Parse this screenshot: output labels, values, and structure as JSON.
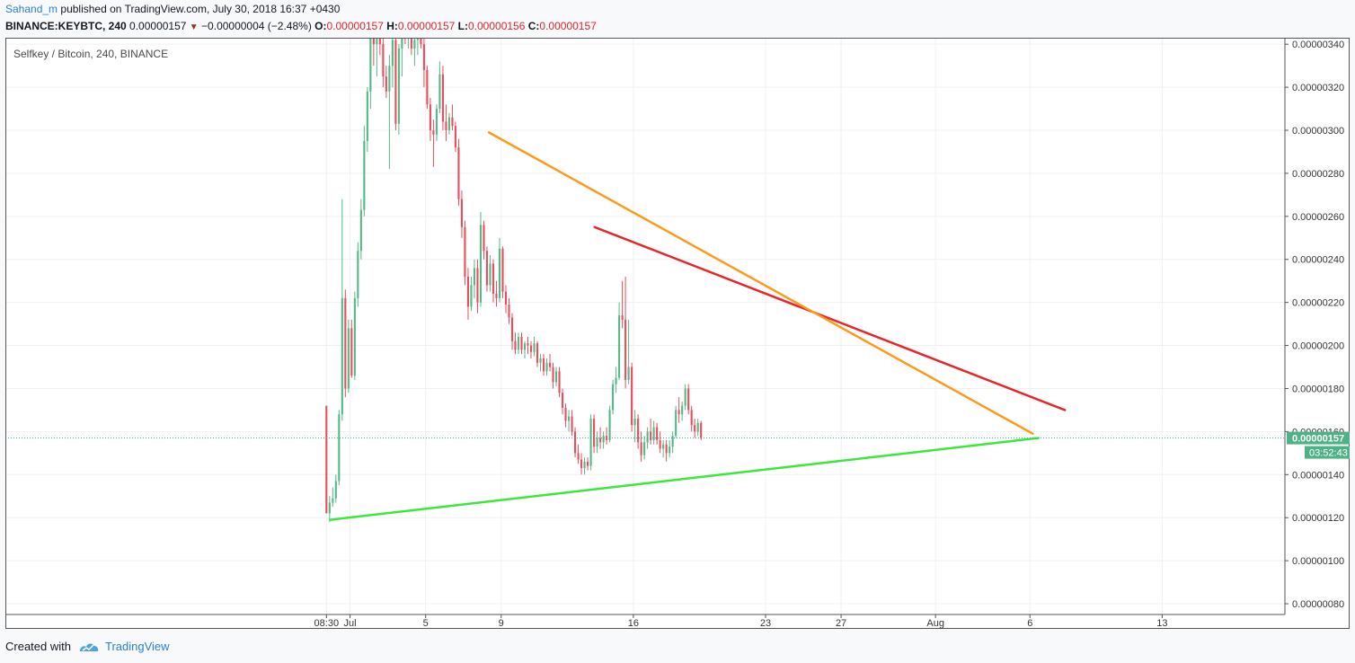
{
  "header": {
    "author": "Sahand_m",
    "published_text": "published on TradingView.com, July 30, 2018 16:37 +0430",
    "symbol": "BINANCE:KEYBTC, 240",
    "last_price": "0.00000157",
    "change": "−0.00000004 (−2.48%)",
    "o_label": "O:",
    "o_value": "0.00000157",
    "h_label": "H:",
    "h_value": "0.00000157",
    "l_label": "L:",
    "l_value": "0.00000156",
    "c_label": "C:",
    "c_value": "0.00000157"
  },
  "footer": {
    "created_with": "Created with",
    "brand": "TradingView"
  },
  "colors": {
    "up": "#53b987",
    "down": "#eb4d5c",
    "price_line": "#26a69a",
    "trend_red": "#e8252b",
    "trend_orange": "#ff9a1a",
    "trend_green": "#3ae83a"
  },
  "chart_data": {
    "type": "candlestick",
    "title": "Selfkey / Bitcoin, 240, BINANCE",
    "y_unit": "BTC",
    "ylim": [
      7.5e-07,
      3.43e-06
    ],
    "y_ticks": [
      "0.00000340",
      "0.00000320",
      "0.00000300",
      "0.00000280",
      "0.00000260",
      "0.00000240",
      "0.00000220",
      "0.00000200",
      "0.00000180",
      "0.00000160",
      "0.00000140",
      "0.00000120",
      "0.00000100",
      "0.00000080"
    ],
    "x_ticks": [
      {
        "label": "08:30",
        "day": 0
      },
      {
        "label": "Jul",
        "day": 1.25
      },
      {
        "label": "5",
        "day": 5.25
      },
      {
        "label": "9",
        "day": 9.25
      },
      {
        "label": "16",
        "day": 16.25
      },
      {
        "label": "23",
        "day": 23.25
      },
      {
        "label": "27",
        "day": 27.25
      },
      {
        "label": "Aug",
        "day": 32.25
      },
      {
        "label": "6",
        "day": 37.25
      },
      {
        "label": "13",
        "day": 44.25
      }
    ],
    "x_range_days": [
      -17,
      50.75
    ],
    "current_price": "0.00000157",
    "countdown": "03:52:43",
    "trendlines": [
      {
        "color": "red",
        "points": [
          [
            14.2,
            2.55e-06
          ],
          [
            39.1,
            1.7e-06
          ]
        ]
      },
      {
        "color": "orange",
        "points": [
          [
            8.6,
            2.99e-06
          ],
          [
            37.4,
            1.59e-06
          ]
        ]
      },
      {
        "color": "green",
        "points": [
          [
            0.2,
            1.19e-06
          ],
          [
            37.7,
            1.57e-06
          ]
        ]
      }
    ],
    "candles": [
      {
        "o": 1.72e-06,
        "h": 1.72e-06,
        "l": 1.22e-06,
        "c": 1.22e-06
      },
      {
        "o": 1.22e-06,
        "h": 1.3e-06,
        "l": 1.18e-06,
        "c": 1.27e-06
      },
      {
        "o": 1.27e-06,
        "h": 1.34e-06,
        "l": 1.25e-06,
        "c": 1.29e-06
      },
      {
        "o": 1.29e-06,
        "h": 1.4e-06,
        "l": 1.27e-06,
        "c": 1.37e-06
      },
      {
        "o": 1.37e-06,
        "h": 1.7e-06,
        "l": 1.35e-06,
        "c": 1.68e-06
      },
      {
        "o": 1.68e-06,
        "h": 2.68e-06,
        "l": 1.65e-06,
        "c": 2.22e-06
      },
      {
        "o": 2.22e-06,
        "h": 2.26e-06,
        "l": 1.76e-06,
        "c": 1.8e-06
      },
      {
        "o": 1.8e-06,
        "h": 2.12e-06,
        "l": 1.78e-06,
        "c": 2.08e-06
      },
      {
        "o": 2.08e-06,
        "h": 2.12e-06,
        "l": 1.85e-06,
        "c": 1.86e-06
      },
      {
        "o": 1.86e-06,
        "h": 2.25e-06,
        "l": 1.84e-06,
        "c": 2.22e-06
      },
      {
        "o": 2.22e-06,
        "h": 2.48e-06,
        "l": 2.18e-06,
        "c": 2.44e-06
      },
      {
        "o": 2.44e-06,
        "h": 2.68e-06,
        "l": 2.4e-06,
        "c": 2.63e-06
      },
      {
        "o": 2.63e-06,
        "h": 3.02e-06,
        "l": 2.6e-06,
        "c": 2.95e-06
      },
      {
        "o": 2.95e-06,
        "h": 3.2e-06,
        "l": 2.9e-06,
        "c": 3.18e-06
      },
      {
        "o": 3.18e-06,
        "h": 3.45e-06,
        "l": 3.1e-06,
        "c": 3.45e-06
      },
      {
        "o": 3.45e-06,
        "h": 3.45e-06,
        "l": 3.3e-06,
        "c": 3.4e-06
      },
      {
        "o": 3.4e-06,
        "h": 3.45e-06,
        "l": 3.25e-06,
        "c": 3.45e-06
      },
      {
        "o": 3.45e-06,
        "h": 3.45e-06,
        "l": 3.35e-06,
        "c": 3.4e-06
      },
      {
        "o": 3.4e-06,
        "h": 3.45e-06,
        "l": 3.2e-06,
        "c": 3.25e-06
      },
      {
        "o": 3.25e-06,
        "h": 3.3e-06,
        "l": 3.15e-06,
        "c": 3.18e-06
      },
      {
        "o": 3.18e-06,
        "h": 3.35e-06,
        "l": 2.82e-06,
        "c": 3.3e-06
      },
      {
        "o": 3.3e-06,
        "h": 3.45e-06,
        "l": 3.2e-06,
        "c": 3.42e-06
      },
      {
        "o": 3.42e-06,
        "h": 3.45e-06,
        "l": 3e-06,
        "c": 3.03e-06
      },
      {
        "o": 3.03e-06,
        "h": 3.4e-06,
        "l": 2.98e-06,
        "c": 3.38e-06
      },
      {
        "o": 3.38e-06,
        "h": 3.45e-06,
        "l": 3.25e-06,
        "c": 3.45e-06
      },
      {
        "o": 3.45e-06,
        "h": 3.45e-06,
        "l": 3.4e-06,
        "c": 3.43e-06
      },
      {
        "o": 3.43e-06,
        "h": 3.45e-06,
        "l": 3.38e-06,
        "c": 3.45e-06
      },
      {
        "o": 3.45e-06,
        "h": 3.45e-06,
        "l": 3.35e-06,
        "c": 3.38e-06
      },
      {
        "o": 3.38e-06,
        "h": 3.45e-06,
        "l": 3.3e-06,
        "c": 3.42e-06
      },
      {
        "o": 3.42e-06,
        "h": 3.45e-06,
        "l": 3.35e-06,
        "c": 3.45e-06
      },
      {
        "o": 3.45e-06,
        "h": 3.45e-06,
        "l": 3.38e-06,
        "c": 3.4e-06
      },
      {
        "o": 3.4e-06,
        "h": 3.45e-06,
        "l": 3.2e-06,
        "c": 3.28e-06
      },
      {
        "o": 3.28e-06,
        "h": 3.3e-06,
        "l": 3.1e-06,
        "c": 3.12e-06
      },
      {
        "o": 3.12e-06,
        "h": 3.15e-06,
        "l": 2.95e-06,
        "c": 3e-06
      },
      {
        "o": 3e-06,
        "h": 3.05e-06,
        "l": 2.83e-06,
        "c": 2.98e-06
      },
      {
        "o": 2.98e-06,
        "h": 3.12e-06,
        "l": 2.95e-06,
        "c": 3.1e-06
      },
      {
        "o": 3.1e-06,
        "h": 3.32e-06,
        "l": 3.08e-06,
        "c": 3.26e-06
      },
      {
        "o": 3.26e-06,
        "h": 3.3e-06,
        "l": 3e-06,
        "c": 3.04e-06
      },
      {
        "o": 3.04e-06,
        "h": 3.12e-06,
        "l": 2.95e-06,
        "c": 3e-06
      },
      {
        "o": 3e-06,
        "h": 3.08e-06,
        "l": 2.98e-06,
        "c": 3.06e-06
      },
      {
        "o": 3.06e-06,
        "h": 3.12e-06,
        "l": 3e-06,
        "c": 3.02e-06
      },
      {
        "o": 3.02e-06,
        "h": 3.04e-06,
        "l": 2.9e-06,
        "c": 2.92e-06
      },
      {
        "o": 2.92e-06,
        "h": 2.96e-06,
        "l": 2.65e-06,
        "c": 2.68e-06
      },
      {
        "o": 2.68e-06,
        "h": 2.72e-06,
        "l": 2.5e-06,
        "c": 2.55e-06
      },
      {
        "o": 2.55e-06,
        "h": 2.58e-06,
        "l": 2.28e-06,
        "c": 2.32e-06
      },
      {
        "o": 2.32e-06,
        "h": 2.36e-06,
        "l": 2.12e-06,
        "c": 2.18e-06
      },
      {
        "o": 2.18e-06,
        "h": 2.32e-06,
        "l": 2.16e-06,
        "c": 2.28e-06
      },
      {
        "o": 2.28e-06,
        "h": 2.4e-06,
        "l": 2.22e-06,
        "c": 2.36e-06
      },
      {
        "o": 2.36e-06,
        "h": 2.4e-06,
        "l": 2.15e-06,
        "c": 2.2e-06
      },
      {
        "o": 2.2e-06,
        "h": 2.62e-06,
        "l": 2.18e-06,
        "c": 2.56e-06
      },
      {
        "o": 2.56e-06,
        "h": 2.58e-06,
        "l": 2.4e-06,
        "c": 2.44e-06
      },
      {
        "o": 2.44e-06,
        "h": 2.46e-06,
        "l": 2.25e-06,
        "c": 2.28e-06
      },
      {
        "o": 2.28e-06,
        "h": 2.42e-06,
        "l": 2.25e-06,
        "c": 2.38e-06
      },
      {
        "o": 2.38e-06,
        "h": 2.4e-06,
        "l": 2.2e-06,
        "c": 2.24e-06
      },
      {
        "o": 2.24e-06,
        "h": 2.3e-06,
        "l": 2.18e-06,
        "c": 2.22e-06
      },
      {
        "o": 2.22e-06,
        "h": 2.5e-06,
        "l": 2.2e-06,
        "c": 2.45e-06
      },
      {
        "o": 2.45e-06,
        "h": 2.46e-06,
        "l": 2.22e-06,
        "c": 2.25e-06
      },
      {
        "o": 2.25e-06,
        "h": 2.28e-06,
        "l": 2.15e-06,
        "c": 2.19e-06
      },
      {
        "o": 2.19e-06,
        "h": 2.22e-06,
        "l": 2.1e-06,
        "c": 2.13e-06
      },
      {
        "o": 2.13e-06,
        "h": 2.15e-06,
        "l": 1.98e-06,
        "c": 2.02e-06
      },
      {
        "o": 2.02e-06,
        "h": 2.06e-06,
        "l": 1.96e-06,
        "c": 1.98e-06
      },
      {
        "o": 1.98e-06,
        "h": 2.06e-06,
        "l": 1.96e-06,
        "c": 2.04e-06
      },
      {
        "o": 2.04e-06,
        "h": 2.06e-06,
        "l": 1.96e-06,
        "c": 1.98e-06
      },
      {
        "o": 1.98e-06,
        "h": 2.02e-06,
        "l": 1.94e-06,
        "c": 2.01e-06
      },
      {
        "o": 2.01e-06,
        "h": 2.04e-06,
        "l": 1.96e-06,
        "c": 2e-06
      },
      {
        "o": 2e-06,
        "h": 2.02e-06,
        "l": 1.94e-06,
        "c": 1.97e-06
      },
      {
        "o": 1.97e-06,
        "h": 2.04e-06,
        "l": 1.95e-06,
        "c": 2.01e-06
      },
      {
        "o": 2.01e-06,
        "h": 2.02e-06,
        "l": 1.9e-06,
        "c": 1.92e-06
      },
      {
        "o": 1.92e-06,
        "h": 1.96e-06,
        "l": 1.88e-06,
        "c": 1.94e-06
      },
      {
        "o": 1.94e-06,
        "h": 1.96e-06,
        "l": 1.86e-06,
        "c": 1.88e-06
      },
      {
        "o": 1.88e-06,
        "h": 1.94e-06,
        "l": 1.86e-06,
        "c": 1.92e-06
      },
      {
        "o": 1.92e-06,
        "h": 1.96e-06,
        "l": 1.88e-06,
        "c": 1.9e-06
      },
      {
        "o": 1.9e-06,
        "h": 1.92e-06,
        "l": 1.8e-06,
        "c": 1.83e-06
      },
      {
        "o": 1.83e-06,
        "h": 1.9e-06,
        "l": 1.81e-06,
        "c": 1.88e-06
      },
      {
        "o": 1.88e-06,
        "h": 1.9e-06,
        "l": 1.76e-06,
        "c": 1.78e-06
      },
      {
        "o": 1.78e-06,
        "h": 1.8e-06,
        "l": 1.68e-06,
        "c": 1.71e-06
      },
      {
        "o": 1.71e-06,
        "h": 1.73e-06,
        "l": 1.62e-06,
        "c": 1.65e-06
      },
      {
        "o": 1.65e-06,
        "h": 1.7e-06,
        "l": 1.6e-06,
        "c": 1.67e-06
      },
      {
        "o": 1.67e-06,
        "h": 1.7e-06,
        "l": 1.58e-06,
        "c": 1.6e-06
      },
      {
        "o": 1.6e-06,
        "h": 1.62e-06,
        "l": 1.48e-06,
        "c": 1.5e-06
      },
      {
        "o": 1.5e-06,
        "h": 1.54e-06,
        "l": 1.45e-06,
        "c": 1.47e-06
      },
      {
        "o": 1.47e-06,
        "h": 1.5e-06,
        "l": 1.4e-06,
        "c": 1.43e-06
      },
      {
        "o": 1.43e-06,
        "h": 1.48e-06,
        "l": 1.4e-06,
        "c": 1.46e-06
      },
      {
        "o": 1.46e-06,
        "h": 1.48e-06,
        "l": 1.42e-06,
        "c": 1.44e-06
      },
      {
        "o": 1.44e-06,
        "h": 1.68e-06,
        "l": 1.42e-06,
        "c": 1.66e-06
      },
      {
        "o": 1.66e-06,
        "h": 1.68e-06,
        "l": 1.5e-06,
        "c": 1.53e-06
      },
      {
        "o": 1.53e-06,
        "h": 1.6e-06,
        "l": 1.5e-06,
        "c": 1.57e-06
      },
      {
        "o": 1.57e-06,
        "h": 1.62e-06,
        "l": 1.52e-06,
        "c": 1.55e-06
      },
      {
        "o": 1.55e-06,
        "h": 1.6e-06,
        "l": 1.52e-06,
        "c": 1.58e-06
      },
      {
        "o": 1.58e-06,
        "h": 1.62e-06,
        "l": 1.54e-06,
        "c": 1.56e-06
      },
      {
        "o": 1.56e-06,
        "h": 1.72e-06,
        "l": 1.55e-06,
        "c": 1.7e-06
      },
      {
        "o": 1.7e-06,
        "h": 1.84e-06,
        "l": 1.68e-06,
        "c": 1.82e-06
      },
      {
        "o": 1.82e-06,
        "h": 1.9e-06,
        "l": 1.78e-06,
        "c": 1.85e-06
      },
      {
        "o": 1.85e-06,
        "h": 2.2e-06,
        "l": 1.84e-06,
        "c": 2.14e-06
      },
      {
        "o": 2.14e-06,
        "h": 2.3e-06,
        "l": 2.08e-06,
        "c": 2.12e-06
      },
      {
        "o": 2.12e-06,
        "h": 2.32e-06,
        "l": 1.8e-06,
        "c": 1.84e-06
      },
      {
        "o": 1.84e-06,
        "h": 2.12e-06,
        "l": 1.82e-06,
        "c": 1.9e-06
      },
      {
        "o": 1.9e-06,
        "h": 1.92e-06,
        "l": 1.6e-06,
        "c": 1.63e-06
      },
      {
        "o": 1.63e-06,
        "h": 1.7e-06,
        "l": 1.55e-06,
        "c": 1.66e-06
      },
      {
        "o": 1.66e-06,
        "h": 1.68e-06,
        "l": 1.52e-06,
        "c": 1.55e-06
      },
      {
        "o": 1.55e-06,
        "h": 1.6e-06,
        "l": 1.46e-06,
        "c": 1.49e-06
      },
      {
        "o": 1.49e-06,
        "h": 1.58e-06,
        "l": 1.47e-06,
        "c": 1.55e-06
      },
      {
        "o": 1.55e-06,
        "h": 1.62e-06,
        "l": 1.52e-06,
        "c": 1.6e-06
      },
      {
        "o": 1.6e-06,
        "h": 1.66e-06,
        "l": 1.54e-06,
        "c": 1.56e-06
      },
      {
        "o": 1.56e-06,
        "h": 1.65e-06,
        "l": 1.54e-06,
        "c": 1.62e-06
      },
      {
        "o": 1.62e-06,
        "h": 1.64e-06,
        "l": 1.54e-06,
        "c": 1.56e-06
      },
      {
        "o": 1.56e-06,
        "h": 1.6e-06,
        "l": 1.5e-06,
        "c": 1.52e-06
      },
      {
        "o": 1.52e-06,
        "h": 1.56e-06,
        "l": 1.48e-06,
        "c": 1.54e-06
      },
      {
        "o": 1.54e-06,
        "h": 1.56e-06,
        "l": 1.46e-06,
        "c": 1.5e-06
      },
      {
        "o": 1.5e-06,
        "h": 1.56e-06,
        "l": 1.48e-06,
        "c": 1.53e-06
      },
      {
        "o": 1.53e-06,
        "h": 1.6e-06,
        "l": 1.5e-06,
        "c": 1.58e-06
      },
      {
        "o": 1.58e-06,
        "h": 1.72e-06,
        "l": 1.57e-06,
        "c": 1.7e-06
      },
      {
        "o": 1.7e-06,
        "h": 1.76e-06,
        "l": 1.64e-06,
        "c": 1.68e-06
      },
      {
        "o": 1.68e-06,
        "h": 1.74e-06,
        "l": 1.65e-06,
        "c": 1.72e-06
      },
      {
        "o": 1.72e-06,
        "h": 1.82e-06,
        "l": 1.7e-06,
        "c": 1.8e-06
      },
      {
        "o": 1.8e-06,
        "h": 1.82e-06,
        "l": 1.68e-06,
        "c": 1.7e-06
      },
      {
        "o": 1.7e-06,
        "h": 1.72e-06,
        "l": 1.6e-06,
        "c": 1.63e-06
      },
      {
        "o": 1.63e-06,
        "h": 1.66e-06,
        "l": 1.57e-06,
        "c": 1.6e-06
      },
      {
        "o": 1.6e-06,
        "h": 1.66e-06,
        "l": 1.58e-06,
        "c": 1.64e-06
      },
      {
        "o": 1.64e-06,
        "h": 1.65e-06,
        "l": 1.56e-06,
        "c": 1.57e-06
      }
    ]
  }
}
